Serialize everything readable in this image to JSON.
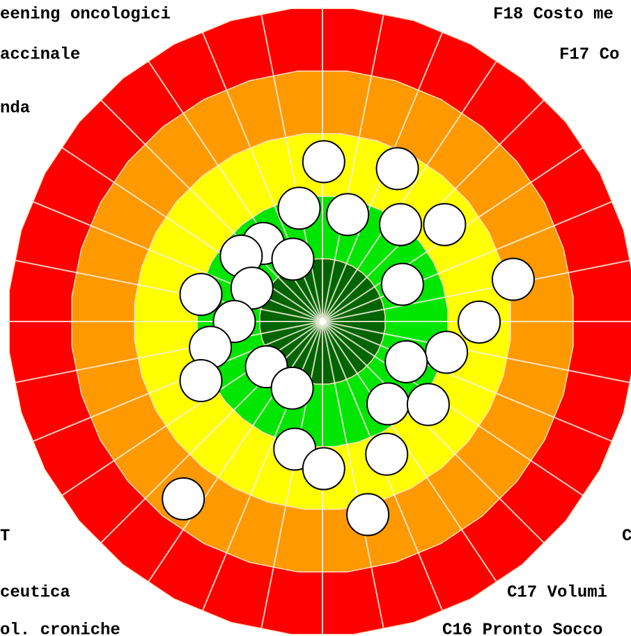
{
  "chart_data": {
    "type": "target",
    "bands": [
      {
        "limit": 1,
        "color": "#006400"
      },
      {
        "limit": 2,
        "color": "#00e600"
      },
      {
        "limit": 3,
        "color": "#ffff00"
      },
      {
        "limit": 4,
        "color": "#ff9900"
      },
      {
        "limit": 5,
        "color": "#ff0000"
      }
    ],
    "spokes": 32,
    "labels": [
      "eening oncologici",
      "accinale",
      "nda",
      "T",
      "ceutica",
      "ol. croniche",
      "F18 Costo me",
      "F17 Co",
      "C",
      "C17 Volumi",
      "C16 Pronto Socco"
    ],
    "x": [
      0.02,
      1.19,
      -0.37,
      0.4,
      1.24,
      1.94,
      -0.94,
      -1.29,
      -0.47,
      3.03,
      1.27,
      -1.12,
      -1.93,
      -1.4,
      2.49,
      1.97,
      -1.78,
      1.33,
      -0.89,
      -1.93,
      -0.48,
      1.04,
      1.68,
      -0.44,
      0.02,
      1.02,
      -2.21,
      0.72
    ],
    "y": [
      2.54,
      2.43,
      1.8,
      1.7,
      1.54,
      1.54,
      1.24,
      1.04,
      0.99,
      0.67,
      0.59,
      0.53,
      0.43,
      0,
      -0.01,
      -0.49,
      -0.41,
      -0.64,
      -0.72,
      -0.94,
      -1.06,
      -1.31,
      -1.32,
      -2.03,
      -2.34,
      -2.11,
      -2.82,
      -3.07
    ]
  }
}
